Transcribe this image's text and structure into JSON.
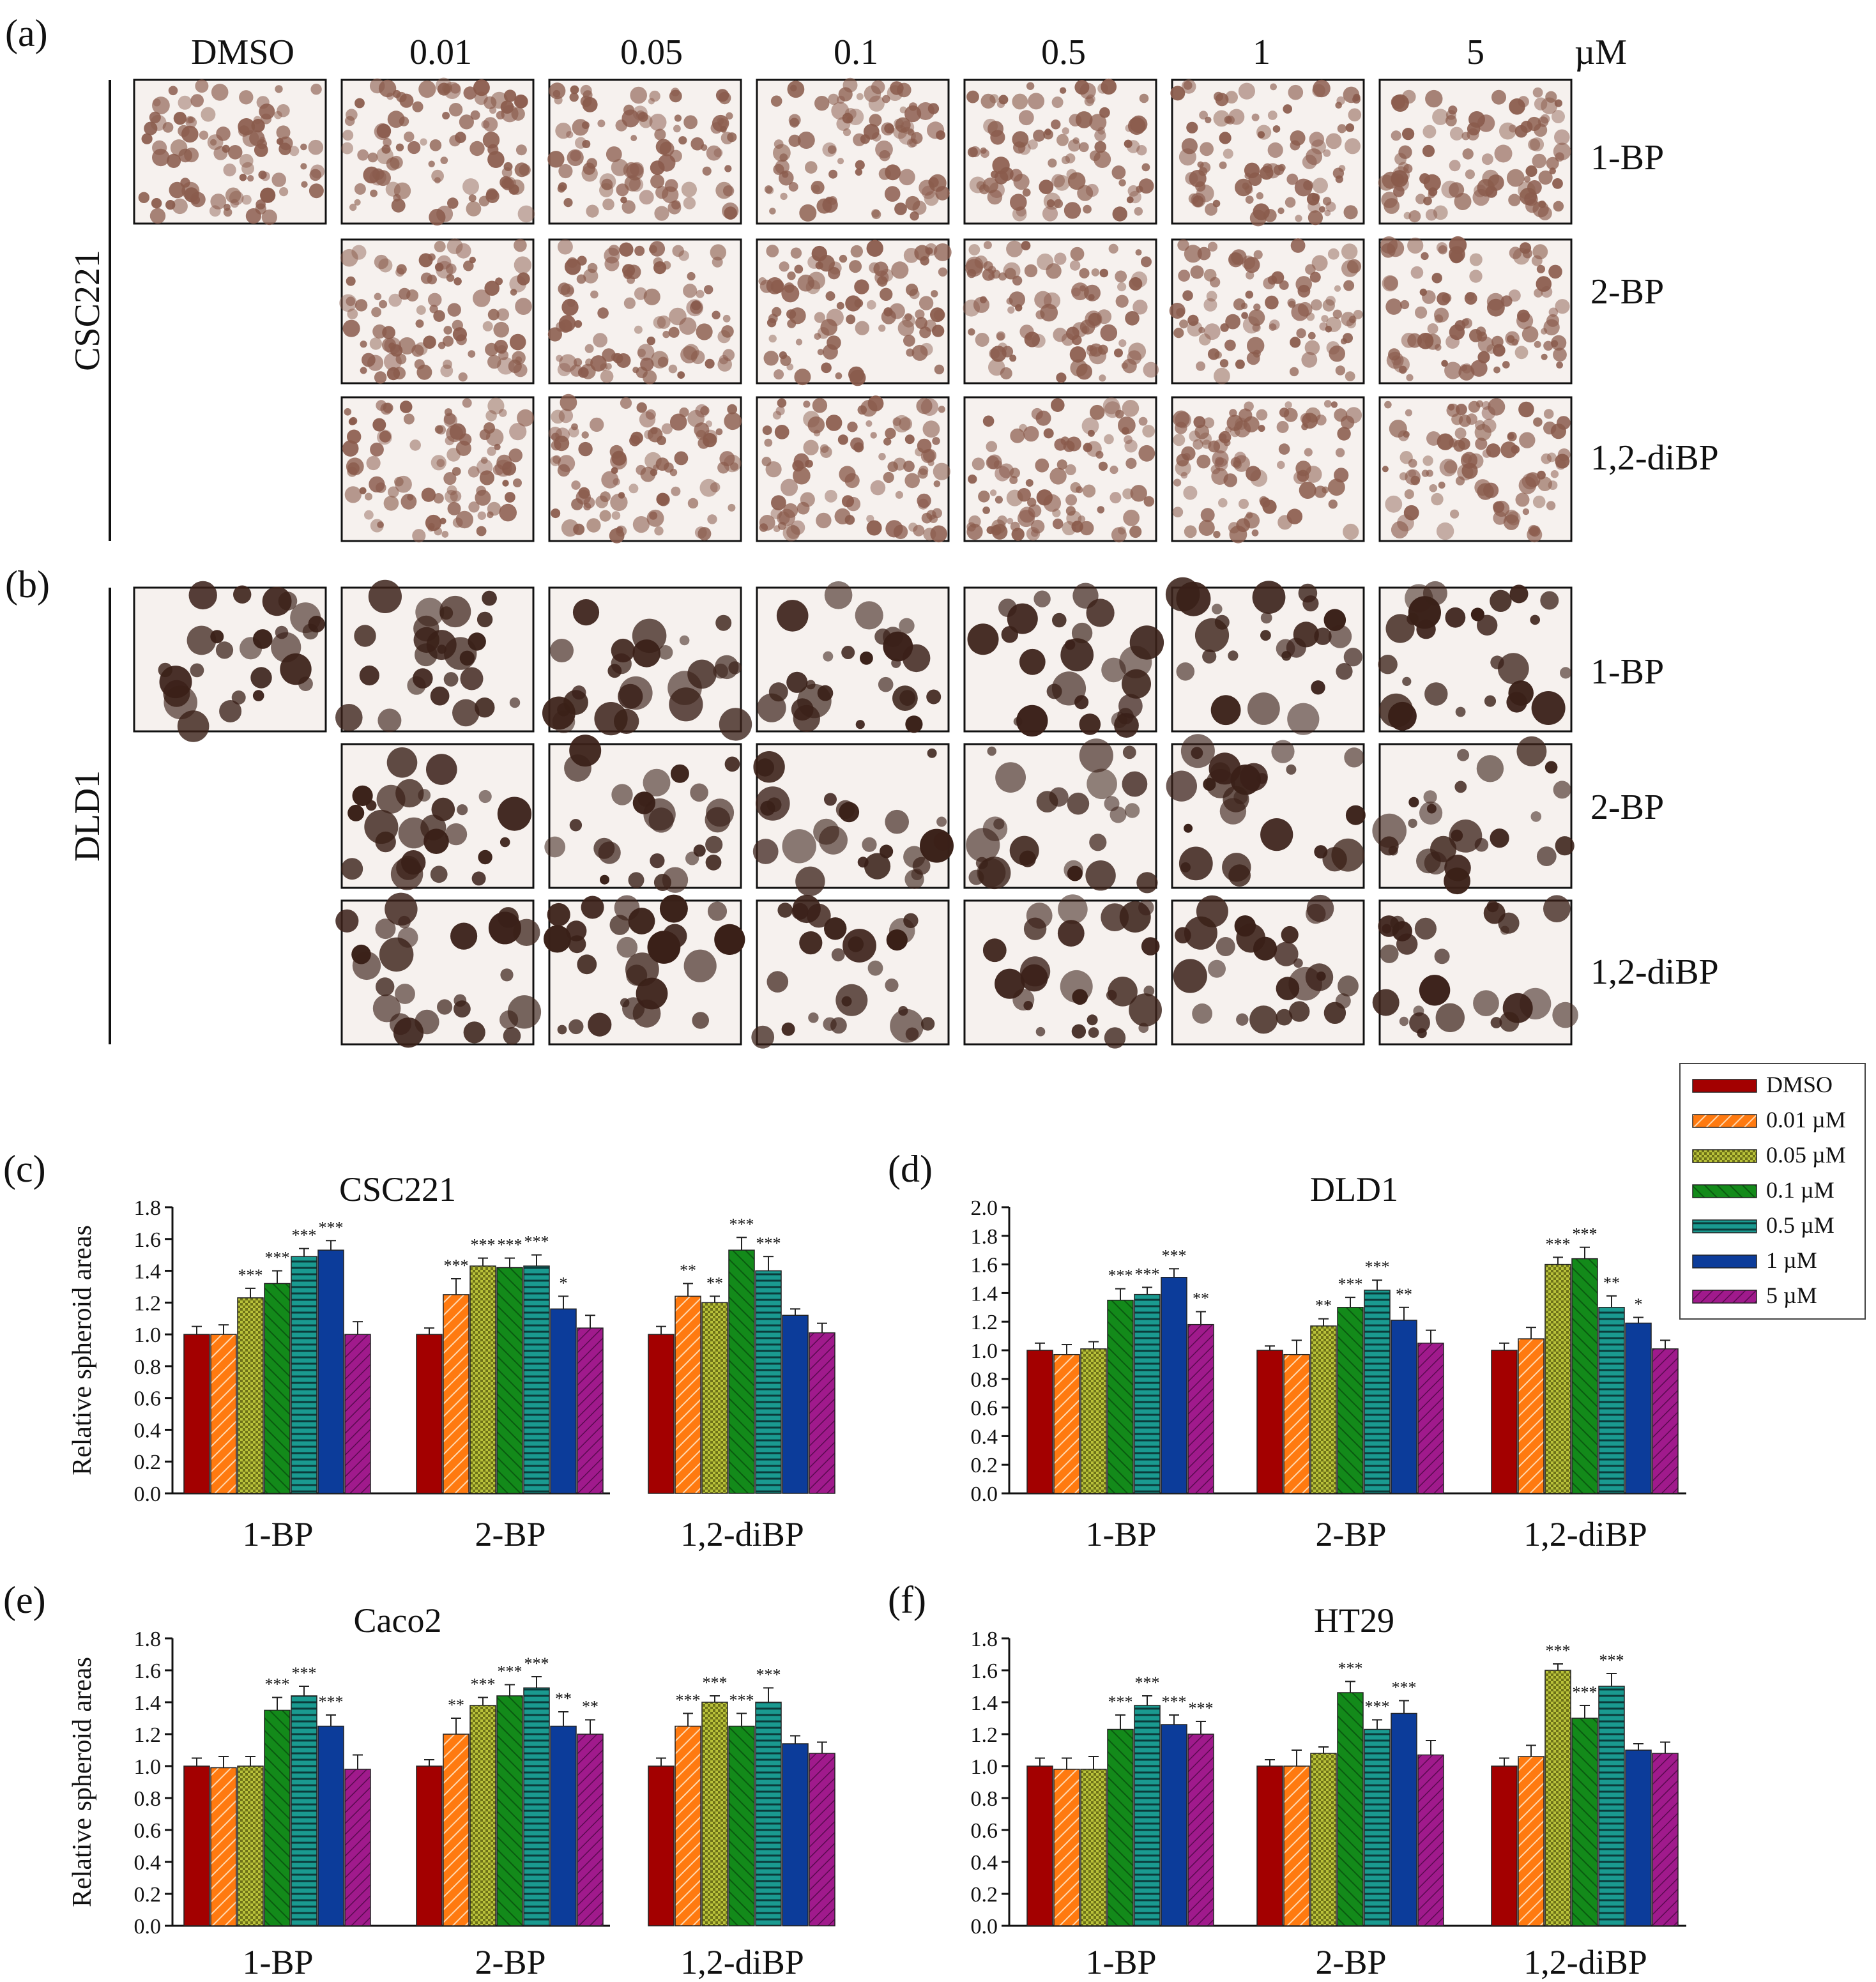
{
  "colors": {
    "DMSO": "#a30000",
    "0.01 µM": "#ff7a10",
    "0.05 µM": "#b9c23a",
    "0.1 µM": "#138a1a",
    "0.5 µM": "#1a9a90",
    "1 µM": "#0c3c9a",
    "5 µM": "#a01a8c",
    "photo_bg": "#f6f1ee",
    "csc_cell": "#8a5b4c",
    "dld_cell": "#3a2018"
  },
  "photo_grid": {
    "column_headers": [
      "DMSO",
      "0.01",
      "0.05",
      "0.1",
      "0.5",
      "1",
      "5"
    ],
    "unit": "µM",
    "panels": [
      {
        "label": "(a)",
        "cell_line": "CSC221",
        "rows": [
          "1-BP",
          "2-BP",
          "1,2-diBP"
        ]
      },
      {
        "label": "(b)",
        "cell_line": "DLD1",
        "rows": [
          "1-BP",
          "2-BP",
          "1,2-diBP"
        ]
      }
    ]
  },
  "legend": {
    "entries": [
      "DMSO",
      "0.01 µM",
      "0.05 µM",
      "0.1 µM",
      "0.5 µM",
      "1 µM",
      "5 µM"
    ]
  },
  "chart_data": [
    {
      "panel": "(c)",
      "type": "bar",
      "title": "CSC221",
      "ylabel": "Relative spheroid areas",
      "xlabel": "",
      "categories": [
        "1-BP",
        "2-BP",
        "1,2-diBP"
      ],
      "ylim": [
        0,
        1.8
      ],
      "yticks": [
        "0.0",
        "0.2",
        "0.4",
        "0.6",
        "0.8",
        "1.0",
        "1.2",
        "1.4",
        "1.6",
        "1.8"
      ],
      "series": [
        {
          "name": "DMSO",
          "values": [
            1.0,
            1.0,
            1.0
          ],
          "errors": [
            0.05,
            0.04,
            0.05
          ],
          "sig": [
            "",
            "",
            ""
          ]
        },
        {
          "name": "0.01 µM",
          "values": [
            1.0,
            1.25,
            1.24
          ],
          "errors": [
            0.06,
            0.1,
            0.08
          ],
          "sig": [
            "",
            "***",
            "**"
          ]
        },
        {
          "name": "0.05 µM",
          "values": [
            1.23,
            1.43,
            1.2
          ],
          "errors": [
            0.06,
            0.05,
            0.04
          ],
          "sig": [
            "***",
            "***",
            "**"
          ]
        },
        {
          "name": "0.1 µM",
          "values": [
            1.32,
            1.42,
            1.53
          ],
          "errors": [
            0.08,
            0.06,
            0.08
          ],
          "sig": [
            "***",
            "***",
            "***"
          ]
        },
        {
          "name": "0.5 µM",
          "values": [
            1.49,
            1.43,
            1.4
          ],
          "errors": [
            0.05,
            0.07,
            0.09
          ],
          "sig": [
            "***",
            "***",
            "***"
          ]
        },
        {
          "name": "1 µM",
          "values": [
            1.53,
            1.16,
            1.12
          ],
          "errors": [
            0.06,
            0.08,
            0.04
          ],
          "sig": [
            "***",
            "*",
            ""
          ]
        },
        {
          "name": "5 µM",
          "values": [
            1.0,
            1.04,
            1.01
          ],
          "errors": [
            0.08,
            0.08,
            0.06
          ],
          "sig": [
            "",
            "",
            ""
          ]
        }
      ]
    },
    {
      "panel": "(d)",
      "type": "bar",
      "title": "DLD1",
      "ylabel": "",
      "xlabel": "",
      "categories": [
        "1-BP",
        "2-BP",
        "1,2-diBP"
      ],
      "ylim": [
        0,
        2.0
      ],
      "yticks": [
        "0.0",
        "0.2",
        "0.4",
        "0.6",
        "0.8",
        "1.0",
        "1.2",
        "1.4",
        "1.6",
        "1.8",
        "2.0"
      ],
      "series": [
        {
          "name": "DMSO",
          "values": [
            1.0,
            1.0,
            1.0
          ],
          "errors": [
            0.05,
            0.03,
            0.05
          ],
          "sig": [
            "",
            "",
            ""
          ]
        },
        {
          "name": "0.01 µM",
          "values": [
            0.97,
            0.97,
            1.08
          ],
          "errors": [
            0.07,
            0.1,
            0.08
          ],
          "sig": [
            "",
            "",
            ""
          ]
        },
        {
          "name": "0.05 µM",
          "values": [
            1.01,
            1.17,
            1.6
          ],
          "errors": [
            0.05,
            0.05,
            0.05
          ],
          "sig": [
            "",
            "**",
            "***"
          ]
        },
        {
          "name": "0.1 µM",
          "values": [
            1.35,
            1.3,
            1.64
          ],
          "errors": [
            0.08,
            0.07,
            0.08
          ],
          "sig": [
            "***",
            "***",
            "***"
          ]
        },
        {
          "name": "0.5 µM",
          "values": [
            1.39,
            1.42,
            1.3
          ],
          "errors": [
            0.05,
            0.07,
            0.08
          ],
          "sig": [
            "***",
            "***",
            "**"
          ]
        },
        {
          "name": "1 µM",
          "values": [
            1.51,
            1.21,
            1.19
          ],
          "errors": [
            0.06,
            0.09,
            0.04
          ],
          "sig": [
            "***",
            "**",
            "*"
          ]
        },
        {
          "name": "5 µM",
          "values": [
            1.18,
            1.05,
            1.01
          ],
          "errors": [
            0.09,
            0.09,
            0.06
          ],
          "sig": [
            "**",
            "",
            ""
          ]
        }
      ]
    },
    {
      "panel": "(e)",
      "type": "bar",
      "title": "Caco2",
      "ylabel": "Relative spheroid areas",
      "xlabel": "",
      "categories": [
        "1-BP",
        "2-BP",
        "1,2-diBP"
      ],
      "ylim": [
        0,
        1.8
      ],
      "yticks": [
        "0.0",
        "0.2",
        "0.4",
        "0.6",
        "0.8",
        "1.0",
        "1.2",
        "1.4",
        "1.6",
        "1.8"
      ],
      "series": [
        {
          "name": "DMSO",
          "values": [
            1.0,
            1.0,
            1.0
          ],
          "errors": [
            0.05,
            0.04,
            0.05
          ],
          "sig": [
            "",
            "",
            ""
          ]
        },
        {
          "name": "0.01 µM",
          "values": [
            0.99,
            1.2,
            1.25
          ],
          "errors": [
            0.07,
            0.1,
            0.08
          ],
          "sig": [
            "",
            "**",
            "***"
          ]
        },
        {
          "name": "0.05 µM",
          "values": [
            1.0,
            1.38,
            1.4
          ],
          "errors": [
            0.06,
            0.05,
            0.04
          ],
          "sig": [
            "",
            "***",
            "***"
          ]
        },
        {
          "name": "0.1 µM",
          "values": [
            1.35,
            1.44,
            1.25
          ],
          "errors": [
            0.08,
            0.07,
            0.08
          ],
          "sig": [
            "***",
            "***",
            "***"
          ]
        },
        {
          "name": "0.5 µM",
          "values": [
            1.44,
            1.49,
            1.4
          ],
          "errors": [
            0.06,
            0.07,
            0.09
          ],
          "sig": [
            "***",
            "***",
            "***"
          ]
        },
        {
          "name": "1 µM",
          "values": [
            1.25,
            1.25,
            1.14
          ],
          "errors": [
            0.07,
            0.09,
            0.05
          ],
          "sig": [
            "***",
            "**",
            ""
          ]
        },
        {
          "name": "5 µM",
          "values": [
            0.98,
            1.2,
            1.08
          ],
          "errors": [
            0.09,
            0.09,
            0.07
          ],
          "sig": [
            "",
            "**",
            ""
          ]
        }
      ]
    },
    {
      "panel": "(f)",
      "type": "bar",
      "title": "HT29",
      "ylabel": "",
      "xlabel": "",
      "categories": [
        "1-BP",
        "2-BP",
        "1,2-diBP"
      ],
      "ylim": [
        0,
        1.8
      ],
      "yticks": [
        "0.0",
        "0.2",
        "0.4",
        "0.6",
        "0.8",
        "1.0",
        "1.2",
        "1.4",
        "1.6",
        "1.8"
      ],
      "series": [
        {
          "name": "DMSO",
          "values": [
            1.0,
            1.0,
            1.0
          ],
          "errors": [
            0.05,
            0.04,
            0.05
          ],
          "sig": [
            "",
            "",
            ""
          ]
        },
        {
          "name": "0.01 µM",
          "values": [
            0.98,
            1.0,
            1.06
          ],
          "errors": [
            0.07,
            0.1,
            0.07
          ],
          "sig": [
            "",
            "",
            ""
          ]
        },
        {
          "name": "0.05 µM",
          "values": [
            0.98,
            1.08,
            1.6
          ],
          "errors": [
            0.08,
            0.04,
            0.04
          ],
          "sig": [
            "",
            "",
            "***"
          ]
        },
        {
          "name": "0.1 µM",
          "values": [
            1.23,
            1.46,
            1.3
          ],
          "errors": [
            0.09,
            0.07,
            0.08
          ],
          "sig": [
            "***",
            "***",
            "***"
          ]
        },
        {
          "name": "0.5 µM",
          "values": [
            1.38,
            1.23,
            1.5
          ],
          "errors": [
            0.06,
            0.06,
            0.08
          ],
          "sig": [
            "***",
            "***",
            "***"
          ]
        },
        {
          "name": "1 µM",
          "values": [
            1.26,
            1.33,
            1.1
          ],
          "errors": [
            0.06,
            0.08,
            0.04
          ],
          "sig": [
            "***",
            "***",
            ""
          ]
        },
        {
          "name": "5 µM",
          "values": [
            1.2,
            1.07,
            1.08
          ],
          "errors": [
            0.08,
            0.09,
            0.07
          ],
          "sig": [
            "***",
            "",
            ""
          ]
        }
      ]
    }
  ]
}
